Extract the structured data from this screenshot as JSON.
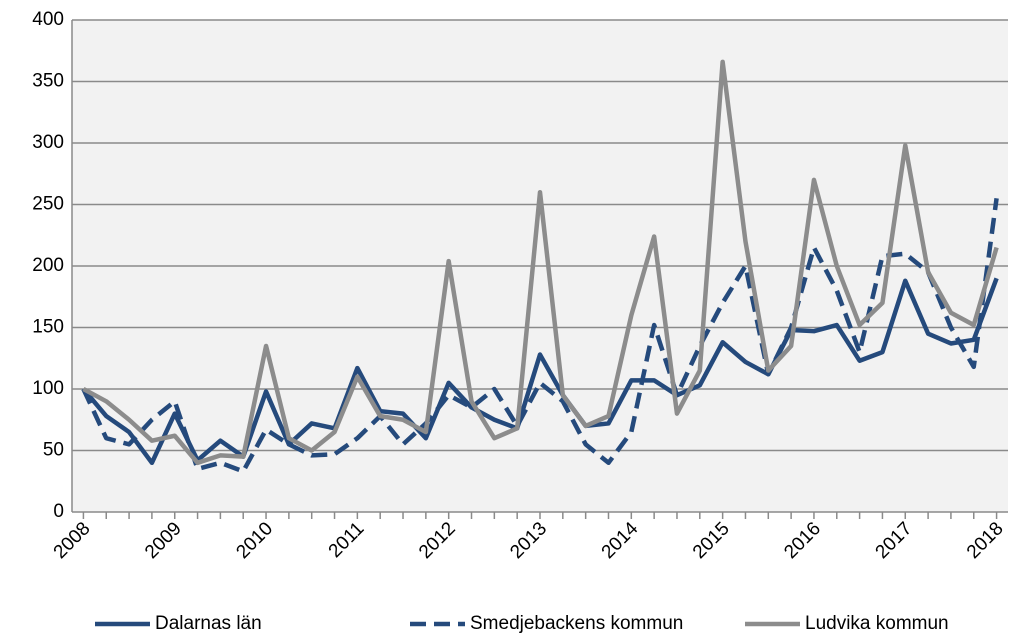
{
  "chart_data": {
    "type": "line",
    "categories": [
      "2008",
      null,
      null,
      null,
      "2009",
      null,
      null,
      null,
      "2010",
      null,
      null,
      null,
      "2011",
      null,
      null,
      null,
      "2012",
      null,
      null,
      null,
      "2013",
      null,
      null,
      null,
      "2014",
      null,
      null,
      null,
      "2015",
      null,
      null,
      null,
      "2016",
      null,
      null,
      null,
      "2017",
      null,
      null,
      null,
      "2018"
    ],
    "series": [
      {
        "name": "Dalarnas län",
        "color": "#254a7c",
        "style": "solid",
        "values": [
          100,
          78,
          65,
          40,
          80,
          42,
          58,
          45,
          98,
          55,
          72,
          68,
          117,
          82,
          80,
          60,
          105,
          85,
          75,
          68,
          128,
          95,
          70,
          72,
          107,
          107,
          95,
          103,
          138,
          122,
          112,
          148,
          147,
          152,
          123,
          130,
          188,
          145,
          137,
          140,
          190
        ]
      },
      {
        "name": "Smedjebackens kommun",
        "color": "#254a7c",
        "style": "dashed",
        "values": [
          100,
          60,
          55,
          75,
          90,
          35,
          40,
          33,
          67,
          55,
          46,
          47,
          60,
          78,
          55,
          72,
          95,
          85,
          100,
          70,
          105,
          90,
          55,
          40,
          65,
          152,
          95,
          135,
          170,
          200,
          112,
          150,
          215,
          180,
          130,
          208,
          210,
          195,
          150,
          118,
          255
        ]
      },
      {
        "name": "Ludvika kommun",
        "color": "#8c8c8c",
        "style": "solid",
        "values": [
          100,
          90,
          75,
          58,
          62,
          40,
          46,
          45,
          135,
          60,
          50,
          65,
          110,
          78,
          75,
          65,
          204,
          90,
          60,
          68,
          260,
          95,
          70,
          78,
          160,
          224,
          80,
          115,
          366,
          220,
          115,
          135,
          270,
          200,
          152,
          170,
          298,
          195,
          162,
          152,
          215
        ]
      }
    ],
    "ylim": [
      0,
      400
    ],
    "yticks": [
      0,
      50,
      100,
      150,
      200,
      250,
      300,
      350,
      400
    ],
    "grid": true,
    "legend": "bottom"
  }
}
